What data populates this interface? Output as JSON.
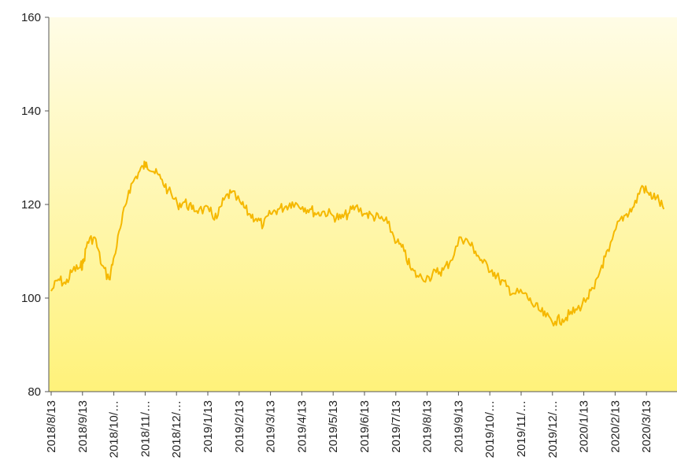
{
  "colors": {
    "line": "#F5B800",
    "plot_bg_top": "#FFFCE6",
    "plot_bg_bottom": "#FFF27A",
    "axis": "#555555",
    "text": "#222222"
  },
  "chart_data": {
    "type": "line",
    "title": "",
    "xlabel": "",
    "ylabel": "",
    "ylim": [
      80,
      160
    ],
    "y_ticks": [
      80,
      100,
      120,
      140,
      160
    ],
    "x_tick_labels": [
      "2018/8/13",
      "2018/9/13",
      "2018/10/…",
      "2018/11/…",
      "2018/12/…",
      "2019/1/13",
      "2019/2/13",
      "2019/3/13",
      "2019/4/13",
      "2019/5/13",
      "2019/6/13",
      "2019/7/13",
      "2019/8/13",
      "2019/9/13",
      "2019/10/…",
      "2019/11/…",
      "2019/12/…",
      "2020/1/13",
      "2020/2/13",
      "2020/3/13"
    ],
    "grid": false,
    "legend": "none",
    "series": [
      {
        "x_dates": [
          "2018/8/13",
          "2018/8/20",
          "2018/8/27",
          "2018/9/3",
          "2018/9/10",
          "2018/9/13",
          "2018/9/17",
          "2018/9/24",
          "2018/10/1",
          "2018/10/8",
          "2018/10/13",
          "2018/10/20",
          "2018/10/27",
          "2018/11/3",
          "2018/11/10",
          "2018/11/13",
          "2018/11/20",
          "2018/11/27",
          "2018/12/4",
          "2018/12/13",
          "2018/12/20",
          "2018/12/27",
          "2019/1/3",
          "2019/1/13",
          "2019/1/20",
          "2019/1/27",
          "2019/2/3",
          "2019/2/13",
          "2019/2/20",
          "2019/2/27",
          "2019/3/6",
          "2019/3/13",
          "2019/3/20",
          "2019/3/27",
          "2019/4/3",
          "2019/4/13",
          "2019/4/20",
          "2019/4/27",
          "2019/5/4",
          "2019/5/13",
          "2019/5/20",
          "2019/5/27",
          "2019/6/3",
          "2019/6/13",
          "2019/6/20",
          "2019/6/27",
          "2019/7/4",
          "2019/7/13",
          "2019/7/20",
          "2019/7/27",
          "2019/8/3",
          "2019/8/13",
          "2019/8/20",
          "2019/8/27",
          "2019/9/3",
          "2019/9/13",
          "2019/9/20",
          "2019/9/27",
          "2019/10/4",
          "2019/10/13",
          "2019/10/20",
          "2019/10/27",
          "2019/11/3",
          "2019/11/13",
          "2019/11/20",
          "2019/11/27",
          "2019/12/4",
          "2019/12/13",
          "2019/12/20",
          "2019/12/27",
          "2020/1/3",
          "2020/1/13",
          "2020/1/20",
          "2020/1/27",
          "2020/2/3",
          "2020/2/13",
          "2020/2/20",
          "2020/2/27",
          "2020/3/6",
          "2020/3/13",
          "2020/3/20",
          "2020/3/27"
        ],
        "values": [
          101.5,
          104.0,
          103.0,
          106.0,
          106.5,
          107.5,
          112.0,
          113.0,
          107.0,
          104.0,
          109.0,
          116.0,
          123.0,
          126.0,
          128.0,
          129.0,
          127.0,
          125.5,
          123.0,
          120.0,
          120.5,
          119.0,
          119.0,
          118.5,
          117.0,
          121.0,
          122.5,
          120.0,
          118.0,
          117.0,
          115.5,
          118.0,
          119.0,
          119.5,
          120.5,
          119.5,
          119.0,
          118.0,
          118.5,
          117.5,
          117.0,
          118.0,
          119.5,
          118.0,
          117.5,
          117.0,
          116.0,
          112.0,
          110.0,
          106.0,
          104.5,
          104.5,
          105.5,
          106.0,
          108.0,
          113.0,
          112.0,
          110.0,
          107.5,
          106.0,
          104.0,
          102.5,
          101.0,
          101.0,
          99.0,
          97.5,
          96.0,
          95.0,
          95.5,
          96.5,
          97.5,
          100.0,
          102.0,
          107.0,
          110.0,
          116.5,
          118.0,
          119.5,
          124.0,
          122.0,
          121.5,
          119.0
        ]
      }
    ]
  }
}
